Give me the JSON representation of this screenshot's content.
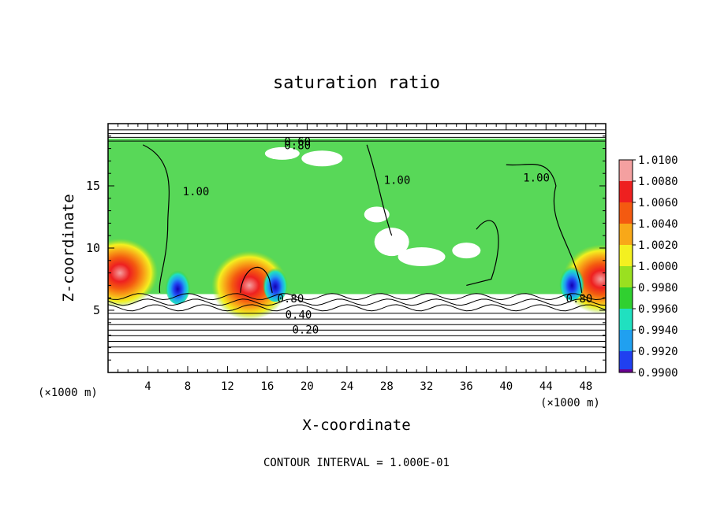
{
  "chart_data": {
    "type": "heatmap",
    "title": "saturation ratio",
    "xlabel": "X-coordinate",
    "ylabel": "Z-coordinate",
    "x_unit_label": "(×1000 m)",
    "y_unit_label": "(×1000 m)",
    "xlim": [
      0,
      50
    ],
    "ylim": [
      0,
      20
    ],
    "x_ticks": [
      4,
      8,
      12,
      16,
      20,
      24,
      28,
      32,
      36,
      40,
      44,
      48
    ],
    "y_ticks": [
      5,
      10,
      15
    ],
    "grid": false,
    "footnote": "CONTOUR INTERVAL = 1.000E-01",
    "colorbar": {
      "placement": "right",
      "min": 0.99,
      "max": 1.01,
      "levels": [
        {
          "value": "1.0100",
          "color": "#f4a0a0"
        },
        {
          "value": "1.0080",
          "color": "#ee2020"
        },
        {
          "value": "1.0060",
          "color": "#f45a10"
        },
        {
          "value": "1.0040",
          "color": "#f8a818"
        },
        {
          "value": "1.0020",
          "color": "#f4f020"
        },
        {
          "value": "1.0000",
          "color": "#9ae020"
        },
        {
          "value": "0.9980",
          "color": "#30d030"
        },
        {
          "value": "0.9960",
          "color": "#20e0c0"
        },
        {
          "value": "0.9940",
          "color": "#20a0f0"
        },
        {
          "value": "0.9920",
          "color": "#2040f0"
        },
        {
          "value": "0.9900",
          "color": "#1000b0"
        }
      ],
      "bottom_color": "#6a0090"
    },
    "field_background": "#58d858",
    "cloud_layer_z": [
      6.3,
      18.8
    ],
    "warm_regions": [
      {
        "x": 1.2,
        "z": 8.0,
        "level": 1.008
      },
      {
        "x": 14.2,
        "z": 7.0,
        "level": 1.008
      },
      {
        "x": 49.5,
        "z": 7.5,
        "level": 1.008
      }
    ],
    "dry_regions": [
      {
        "x": 7.0,
        "z": 7.0,
        "level": 0.994
      },
      {
        "x": 46.6,
        "z": 7.3,
        "level": 0.992
      },
      {
        "x": 16.8,
        "z": 7.2,
        "level": 0.996
      }
    ],
    "contour_lines": [
      {
        "label": "0.20",
        "z": 3.4,
        "label_x": 18.5
      },
      {
        "label": "0.40",
        "z": 4.6,
        "label_x": 17.8
      },
      {
        "label": "0.80",
        "z": 5.9,
        "label_x": 17.0
      },
      {
        "label": "0.80",
        "z": 5.9,
        "label_x": 46.0
      },
      {
        "label": "0.60",
        "z": 18.5,
        "label_x": 17.7
      },
      {
        "label": "0.80",
        "z": 18.2,
        "label_x": 17.7
      },
      {
        "label": "1.00",
        "z": 14.5,
        "label_x": 7.5
      },
      {
        "label": "1.00",
        "z": 15.4,
        "label_x": 27.7
      },
      {
        "label": "1.00",
        "z": 15.6,
        "label_x": 41.7
      }
    ]
  }
}
